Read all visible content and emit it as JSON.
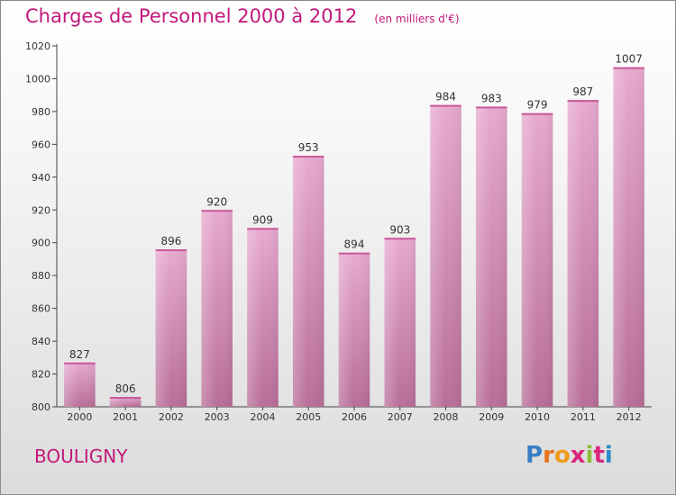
{
  "chart_data": {
    "type": "bar",
    "title": "Charges de Personnel 2000 à 2012",
    "subtitle": "(en milliers d'€)",
    "categories": [
      "2000",
      "2001",
      "2002",
      "2003",
      "2004",
      "2005",
      "2006",
      "2007",
      "2008",
      "2009",
      "2010",
      "2011",
      "2012"
    ],
    "values": [
      827,
      806,
      896,
      920,
      909,
      953,
      894,
      903,
      984,
      983,
      979,
      987,
      1007
    ],
    "value_labels": [
      "827",
      "806",
      "896",
      "920",
      "909",
      "953",
      "894",
      "903",
      "984",
      "983",
      "979",
      "987",
      "1007"
    ],
    "ylim": [
      800,
      1020
    ],
    "yticks": [
      800,
      820,
      840,
      860,
      880,
      900,
      920,
      940,
      960,
      980,
      1000,
      1020
    ],
    "ytick_labels": [
      "800",
      "820",
      "840",
      "860",
      "880",
      "900",
      "920",
      "940",
      "960",
      "980",
      "1000",
      "1020"
    ],
    "xlabel": "",
    "ylabel": "",
    "grid": false,
    "bar_color": "#d98fba"
  },
  "footer": {
    "place": "BOULIGNY"
  },
  "logo": {
    "text": "Proxiti",
    "letters": [
      "P",
      "r",
      "o",
      "x",
      "i",
      "t",
      "i"
    ],
    "letter_colors": [
      "#3a7fc4",
      "#e8731d",
      "#ef9a1a",
      "#d9267d",
      "#8bbf3a",
      "#d9267d",
      "#2e8bc9"
    ]
  }
}
